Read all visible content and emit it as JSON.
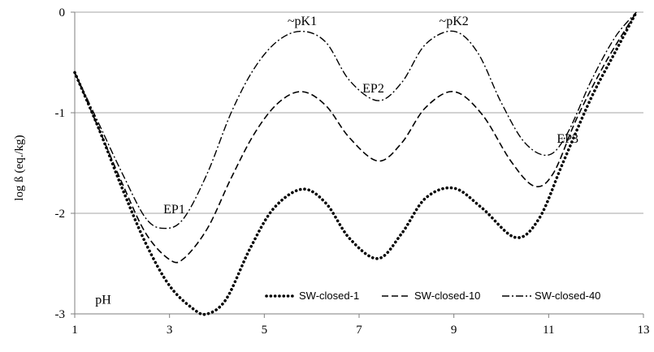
{
  "chart_data": {
    "type": "line",
    "ylabel": "log ß (eq./kg)",
    "xlabel": "",
    "xlim": [
      1,
      13
    ],
    "ylim": [
      -3,
      0
    ],
    "x_ticks": [
      "1",
      "3",
      "5",
      "7",
      "9",
      "11",
      "13"
    ],
    "y_ticks": [
      "-3",
      "-2",
      "-1",
      "0"
    ],
    "grid": "horizontal",
    "legend_position": "bottom-right",
    "series": [
      {
        "name": "SW-closed-1",
        "style": "dotted",
        "points": [
          [
            1,
            -0.6
          ],
          [
            1.5,
            -1.15
          ],
          [
            2,
            -1.75
          ],
          [
            2.5,
            -2.3
          ],
          [
            3,
            -2.72
          ],
          [
            3.5,
            -2.95
          ],
          [
            3.8,
            -3.0
          ],
          [
            4.2,
            -2.85
          ],
          [
            4.7,
            -2.35
          ],
          [
            5.2,
            -1.95
          ],
          [
            5.8,
            -1.76
          ],
          [
            6.3,
            -1.9
          ],
          [
            6.8,
            -2.25
          ],
          [
            7.4,
            -2.45
          ],
          [
            7.9,
            -2.2
          ],
          [
            8.4,
            -1.85
          ],
          [
            9.0,
            -1.75
          ],
          [
            9.6,
            -1.95
          ],
          [
            10.3,
            -2.24
          ],
          [
            10.8,
            -2.05
          ],
          [
            11.3,
            -1.5
          ],
          [
            11.9,
            -0.85
          ],
          [
            12.4,
            -0.4
          ],
          [
            12.85,
            0
          ]
        ]
      },
      {
        "name": "SW-closed-10",
        "style": "dashed",
        "points": [
          [
            1,
            -0.6
          ],
          [
            1.5,
            -1.15
          ],
          [
            2,
            -1.7
          ],
          [
            2.5,
            -2.2
          ],
          [
            3,
            -2.46
          ],
          [
            3.3,
            -2.45
          ],
          [
            3.8,
            -2.15
          ],
          [
            4.3,
            -1.65
          ],
          [
            4.8,
            -1.2
          ],
          [
            5.3,
            -0.9
          ],
          [
            5.8,
            -0.79
          ],
          [
            6.3,
            -0.93
          ],
          [
            6.8,
            -1.25
          ],
          [
            7.4,
            -1.48
          ],
          [
            7.9,
            -1.3
          ],
          [
            8.4,
            -0.95
          ],
          [
            9.0,
            -0.79
          ],
          [
            9.6,
            -1.02
          ],
          [
            10.2,
            -1.48
          ],
          [
            10.7,
            -1.73
          ],
          [
            11.1,
            -1.6
          ],
          [
            11.6,
            -1.05
          ],
          [
            12.2,
            -0.5
          ],
          [
            12.85,
            0
          ]
        ]
      },
      {
        "name": "SW-closed-40",
        "style": "dashdot",
        "points": [
          [
            1,
            -0.6
          ],
          [
            1.5,
            -1.1
          ],
          [
            2,
            -1.6
          ],
          [
            2.5,
            -2.05
          ],
          [
            2.9,
            -2.15
          ],
          [
            3.3,
            -2.05
          ],
          [
            3.8,
            -1.6
          ],
          [
            4.3,
            -1.0
          ],
          [
            4.8,
            -0.55
          ],
          [
            5.3,
            -0.28
          ],
          [
            5.8,
            -0.19
          ],
          [
            6.3,
            -0.3
          ],
          [
            6.8,
            -0.68
          ],
          [
            7.4,
            -0.88
          ],
          [
            7.9,
            -0.7
          ],
          [
            8.4,
            -0.32
          ],
          [
            9.0,
            -0.19
          ],
          [
            9.5,
            -0.4
          ],
          [
            10.0,
            -0.9
          ],
          [
            10.5,
            -1.3
          ],
          [
            11.0,
            -1.42
          ],
          [
            11.4,
            -1.2
          ],
          [
            11.9,
            -0.68
          ],
          [
            12.4,
            -0.25
          ],
          [
            12.85,
            0
          ]
        ]
      }
    ],
    "annotations": [
      {
        "text": "~pK1",
        "x": 5.8,
        "y": -0.13
      },
      {
        "text": "~pK2",
        "x": 9.0,
        "y": -0.13
      },
      {
        "text": "EP1",
        "x": 3.1,
        "y": -2.0
      },
      {
        "text": "EP2",
        "x": 7.3,
        "y": -0.8
      },
      {
        "text": "EP3",
        "x": 11.4,
        "y": -1.3
      },
      {
        "text": "pH",
        "x": 1.6,
        "y": -2.9
      }
    ]
  }
}
